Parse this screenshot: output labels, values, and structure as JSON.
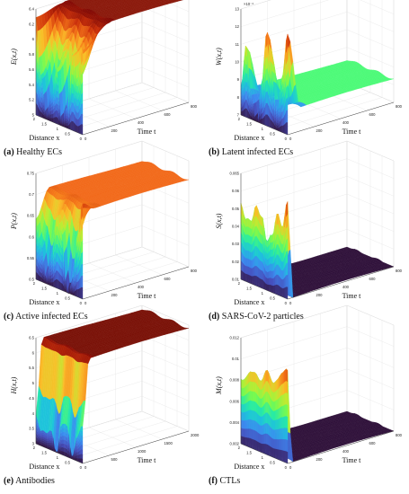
{
  "panels": [
    {
      "id": "a",
      "caption_letter": "(a)",
      "caption_text": "Healthy ECs",
      "ylabel": "E(x,t)",
      "xlabel": "Distance x",
      "tlabel": "Time t",
      "exponent": "",
      "z_ticks": [
        "6.4",
        "6.2",
        "6",
        "5.8",
        "5.6",
        "5.4",
        "5.2",
        "5"
      ],
      "x_ticks": [
        "2",
        "1.5",
        "1",
        "0.5",
        "0"
      ],
      "t_ticks": [
        "0",
        "200",
        "400",
        "600",
        "800"
      ],
      "colormap": "turbo",
      "chart_data": {
        "type": "surface",
        "z_range": [
          5,
          6.4
        ],
        "x_range": [
          0,
          2
        ],
        "t_range": [
          0,
          800
        ],
        "initial_profile": [
          0.8,
          0.45,
          0.75,
          0.2,
          0.0,
          0.55,
          0.3,
          0.0,
          0.4,
          0.95
        ],
        "steady_level": 0.98,
        "transient_end_fraction": 0.25,
        "steady_color": "#8b1a0c"
      }
    },
    {
      "id": "b",
      "caption_letter": "(b)",
      "caption_text": "Latent infected ECs",
      "ylabel": "W(x,t)",
      "xlabel": "Distance x",
      "tlabel": "Time t",
      "exponent": "×10⁻³",
      "z_ticks": [
        "13",
        "12",
        "11",
        "10",
        "9",
        "8",
        "7"
      ],
      "x_ticks": [
        "2",
        "1.5",
        "1",
        "0.5",
        "0"
      ],
      "t_ticks": [
        "0",
        "200",
        "400",
        "600",
        "800"
      ],
      "colormap": "turbo",
      "chart_data": {
        "type": "surface",
        "z_range": [
          7,
          13
        ],
        "x_range": [
          0,
          2
        ],
        "t_range": [
          0,
          800
        ],
        "initial_profile": [
          0.95,
          0.5,
          0.2,
          0.55,
          0.85,
          0.4,
          0.0,
          0.2,
          0.7,
          0.3
        ],
        "steady_level": 0.22,
        "transient_end_fraction": 0.12,
        "steady_color": "#4dfa78"
      }
    },
    {
      "id": "c",
      "caption_letter": "(c)",
      "caption_text": "Active infected ECs",
      "ylabel": "P(x,t)",
      "xlabel": "Distance x",
      "tlabel": "Time t",
      "exponent": "",
      "z_ticks": [
        "0.75",
        "0.7",
        "0.65",
        "0.6",
        "0.55",
        "0.5"
      ],
      "x_ticks": [
        "2",
        "1.5",
        "1",
        "0.5",
        "0"
      ],
      "t_ticks": [
        "0",
        "200",
        "400",
        "600",
        "800"
      ],
      "colormap": "turbo",
      "chart_data": {
        "type": "surface",
        "z_range": [
          0.5,
          0.75
        ],
        "x_range": [
          0,
          2
        ],
        "t_range": [
          0,
          800
        ],
        "initial_profile": [
          0.9,
          0.55,
          0.15,
          0.0,
          0.5,
          0.7,
          0.3,
          0.0,
          0.35,
          0.6
        ],
        "steady_level": 0.82,
        "transient_end_fraction": 0.12,
        "steady_color": "#f26a1b"
      }
    },
    {
      "id": "d",
      "caption_letter": "(d)",
      "caption_text": "SARS-CoV-2 particles",
      "ylabel": "S(x,t)",
      "xlabel": "Distance x",
      "tlabel": "Time t",
      "exponent": "",
      "z_ticks": [
        "0.065",
        "0.06",
        "0.05",
        "0.04",
        "0.03",
        "0.02",
        "0.01"
      ],
      "x_ticks": [
        "2",
        "1.5",
        "1",
        "0.5",
        "0"
      ],
      "t_ticks": [
        "0",
        "200",
        "400",
        "600",
        "800"
      ],
      "colormap": "turbo",
      "chart_data": {
        "type": "surface",
        "z_range": [
          0,
          0.065
        ],
        "x_range": [
          0,
          2
        ],
        "t_range": [
          0,
          800
        ],
        "initial_profile": [
          0.92,
          0.62,
          0.8,
          0.55,
          0.42,
          0.7,
          0.78,
          0.55,
          0.6,
          0.75
        ],
        "steady_level": 0.0,
        "transient_end_fraction": 0.05,
        "steady_color": "#30123b"
      }
    },
    {
      "id": "e",
      "caption_letter": "(e)",
      "caption_text": "Antibodies",
      "ylabel": "H(x,t)",
      "xlabel": "Distance x",
      "tlabel": "Time t",
      "exponent": "",
      "z_ticks": [
        "6.5",
        "6",
        "5.5",
        "5",
        "4.5",
        "4",
        "3.5",
        "3"
      ],
      "x_ticks": [
        "2",
        "1.5",
        "1",
        "0.5",
        "0"
      ],
      "t_ticks": [
        "0",
        "500",
        "1000",
        "1500",
        "2000"
      ],
      "colormap": "turbo",
      "chart_data": {
        "type": "surface",
        "z_range": [
          3,
          6.5
        ],
        "x_range": [
          0,
          2
        ],
        "t_range": [
          0,
          2000
        ],
        "initial_profile": [
          0.35,
          0.2,
          0.05,
          0.3,
          0.25,
          0.0,
          0.2,
          0.1,
          0.15,
          0.3
        ],
        "steady_level": 0.97,
        "transient_end_fraction": 0.06,
        "steady_color": "#7a1208"
      }
    },
    {
      "id": "f",
      "caption_letter": "(f)",
      "caption_text": "CTLs",
      "ylabel": "M(x,t)",
      "xlabel": "Distance x",
      "tlabel": "Time t",
      "exponent": "",
      "z_ticks": [
        "0.012",
        "0.01",
        "0.008",
        "0.006",
        "0.004",
        "0.002"
      ],
      "x_ticks": [
        "2",
        "1.5",
        "1",
        "0.5",
        "0"
      ],
      "t_ticks": [
        "0",
        "200",
        "400",
        "600",
        "800"
      ],
      "colormap": "turbo",
      "chart_data": {
        "type": "surface",
        "z_range": [
          0,
          0.012
        ],
        "x_range": [
          0,
          2
        ],
        "t_range": [
          0,
          800
        ],
        "initial_profile": [
          0.88,
          0.8,
          0.78,
          0.72,
          0.76,
          0.7,
          0.74,
          0.68,
          0.66,
          0.64
        ],
        "steady_level": 0.0,
        "transient_end_fraction": 0.04,
        "steady_color": "#30123b"
      }
    }
  ]
}
